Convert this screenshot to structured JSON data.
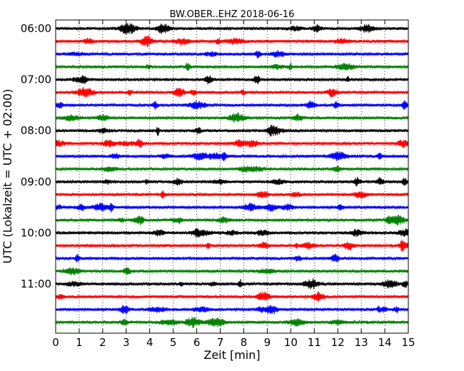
{
  "chart_data": {
    "type": "line",
    "title": "BW.OBER..EHZ 2018-06-16",
    "xlabel": "Zeit  [min]",
    "ylabel": "UTC (Lokalzeit = UTC + 02:00)",
    "xlim": [
      0,
      15
    ],
    "x_ticks": [
      "0",
      "1",
      "2",
      "3",
      "4",
      "5",
      "6",
      "7",
      "8",
      "9",
      "10",
      "11",
      "12",
      "13",
      "14",
      "15"
    ],
    "y_ticks": [
      {
        "label": "06:00",
        "trace": 0
      },
      {
        "label": "07:00",
        "trace": 4
      },
      {
        "label": "08:00",
        "trace": 8
      },
      {
        "label": "09:00",
        "trace": 12
      },
      {
        "label": "10:00",
        "trace": 16
      },
      {
        "label": "11:00",
        "trace": 20
      }
    ],
    "trace_count": 24,
    "trace_colors": [
      "#000000",
      "#ff0000",
      "#0000ff",
      "#008000"
    ],
    "grid": "vertical-dotted",
    "legend": "none"
  }
}
